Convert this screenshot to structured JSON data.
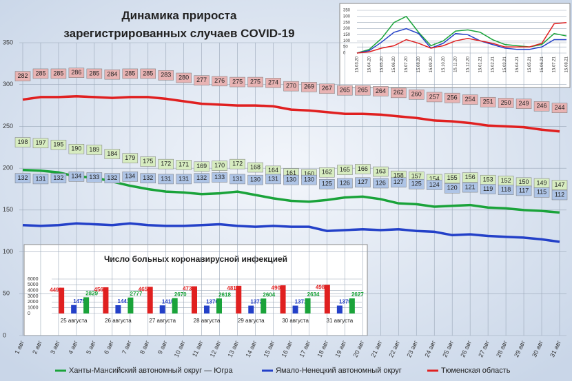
{
  "chart_data": [
    {
      "type": "line",
      "title": "Динамика прироста зарегистрированных случаев COVID-19",
      "categories": [
        "1 авг",
        "2 авг",
        "3 авг",
        "4 авг",
        "5 авг",
        "6 авг",
        "7 авг",
        "8 авг",
        "9 авг",
        "10 авг",
        "11 авг",
        "12 авг",
        "13 авг",
        "14 авг",
        "15 авг",
        "16 авг",
        "17 авг",
        "18 авг",
        "19 авг",
        "20 авг",
        "21 авг",
        "22 авг",
        "23 авг",
        "24 авг",
        "25 авг",
        "26 авг",
        "27 авг",
        "28 авг",
        "29 авг",
        "30 авг",
        "31 авг"
      ],
      "series": [
        {
          "name": "Ханты-Мансийский автономный округ — Югра",
          "color": "#1aa33a",
          "values": [
            198,
            197,
            195,
            190,
            189,
            184,
            179,
            175,
            172,
            171,
            169,
            170,
            172,
            168,
            164,
            161,
            160,
            162,
            165,
            166,
            163,
            158,
            157,
            154,
            155,
            156,
            153,
            152,
            150,
            149,
            147
          ]
        },
        {
          "name": "Ямало-Ненецкий автономный округ",
          "color": "#2340c8",
          "values": [
            132,
            131,
            132,
            134,
            133,
            132,
            134,
            132,
            131,
            131,
            132,
            133,
            131,
            130,
            131,
            130,
            130,
            125,
            126,
            127,
            126,
            127,
            125,
            124,
            120,
            121,
            119,
            118,
            117,
            115,
            112
          ]
        },
        {
          "name": "Тюменская область",
          "color": "#e02020",
          "values": [
            282,
            285,
            285,
            286,
            285,
            284,
            285,
            285,
            283,
            280,
            277,
            276,
            275,
            275,
            274,
            270,
            269,
            267,
            265,
            265,
            264,
            262,
            260,
            257,
            256,
            254,
            251,
            250,
            249,
            246,
            244
          ]
        }
      ],
      "ylim": [
        0,
        350
      ],
      "yticks": [
        0,
        50,
        100,
        150,
        200,
        250,
        300,
        350
      ],
      "grid": true
    },
    {
      "type": "bar",
      "title": "Число больных коронавирусной инфекцией",
      "categories": [
        "25 августа",
        "26 августа",
        "27 августа",
        "28 августа",
        "29 августа",
        "30 августа",
        "31 августа"
      ],
      "series": [
        {
          "color": "#e02020",
          "values": [
            4490,
            4566,
            4651,
            4734,
            4818,
            4903,
            4986
          ]
        },
        {
          "color": "#2340c8",
          "values": [
            1475,
            1441,
            1415,
            1376,
            1372,
            1371,
            1379
          ]
        },
        {
          "color": "#1aa33a",
          "values": [
            2829,
            2777,
            2670,
            2618,
            2604,
            2634,
            2627
          ]
        }
      ],
      "ylim": [
        0,
        6000
      ],
      "yticks": [
        0,
        1000,
        2000,
        3000,
        4000,
        5000,
        6000
      ],
      "grid": true
    },
    {
      "type": "line",
      "categories": [
        "15.03.20",
        "15.04.20",
        "15.05.20",
        "15.06.20",
        "15.07.20",
        "15.08.20",
        "15.09.20",
        "15.10.20",
        "15.11.20",
        "15.12.20",
        "15.01.21",
        "15.02.21",
        "15.03.21",
        "15.04.21",
        "15.05.21",
        "15.06.21",
        "15.07.21",
        "15.08.21"
      ],
      "series": [
        {
          "color": "#1aa33a",
          "values": [
            0,
            30,
            120,
            250,
            300,
            170,
            60,
            100,
            180,
            190,
            170,
            110,
            70,
            60,
            50,
            70,
            160,
            140
          ]
        },
        {
          "color": "#2340c8",
          "values": [
            0,
            20,
            90,
            170,
            200,
            160,
            40,
            80,
            160,
            150,
            100,
            70,
            40,
            30,
            30,
            50,
            110,
            110
          ]
        },
        {
          "color": "#e02020",
          "values": [
            0,
            10,
            40,
            60,
            110,
            80,
            40,
            60,
            100,
            120,
            100,
            80,
            50,
            50,
            50,
            80,
            240,
            250
          ]
        }
      ],
      "ylim": [
        0,
        350
      ],
      "yticks": [
        0,
        50,
        100,
        150,
        200,
        250,
        300,
        350
      ],
      "grid": true
    }
  ]
}
